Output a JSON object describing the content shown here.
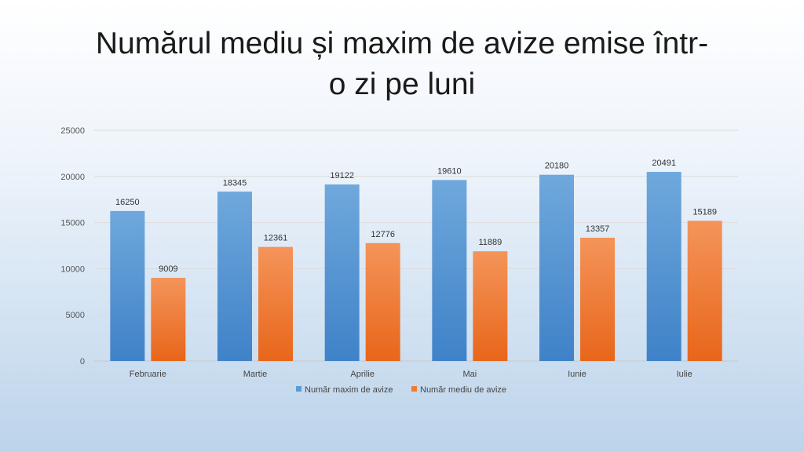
{
  "title_line1": "Numărul mediu și maxim de avize emise într-",
  "title_line2": "o zi pe luni",
  "chart_data": {
    "type": "bar",
    "title": "Numărul mediu și maxim de avize emise într-o zi pe luni",
    "categories": [
      "Februarie",
      "Martie",
      "Aprilie",
      "Mai",
      "Iunie",
      "Iulie"
    ],
    "series": [
      {
        "name": "Număr maxim de avize",
        "color": "#5b9bd5",
        "values": [
          16250,
          18345,
          19122,
          19610,
          20180,
          20491
        ]
      },
      {
        "name": "Număr mediu de avize",
        "color": "#ed7d31",
        "values": [
          9009,
          12361,
          12776,
          11889,
          13357,
          15189
        ]
      }
    ],
    "ylim": [
      0,
      25000
    ],
    "yticks": [
      0,
      5000,
      10000,
      15000,
      20000,
      25000
    ],
    "grid": true,
    "legend": "bottom",
    "data_labels": true
  }
}
